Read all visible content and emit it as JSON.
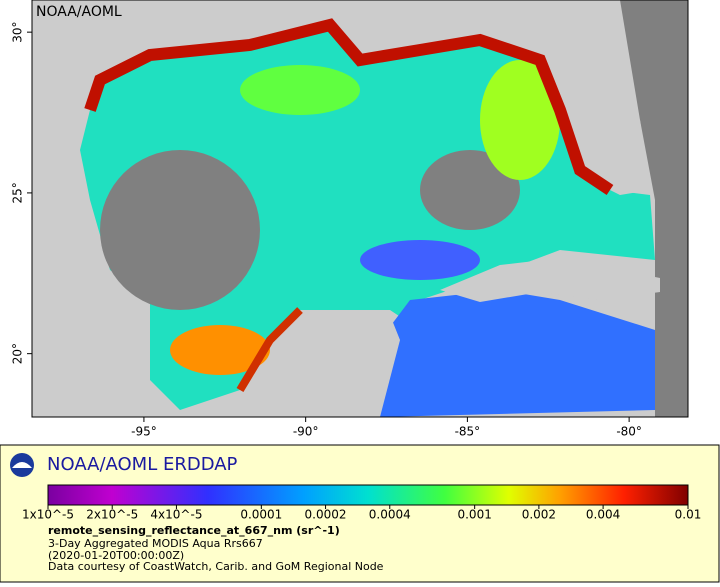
{
  "map": {
    "watermark": "NOAA/AOML",
    "lon_range": [
      -98.46,
      -78.18
    ],
    "lat_range": [
      18.03,
      31
    ],
    "lon_ticks": [
      {
        "value": -95,
        "label": "-95°"
      },
      {
        "value": -90,
        "label": "-90°"
      },
      {
        "value": -85,
        "label": "-85°"
      },
      {
        "value": -80,
        "label": "-80°"
      }
    ],
    "lat_ticks": [
      {
        "value": 30,
        "label": "30°"
      },
      {
        "value": 25,
        "label": "25°"
      },
      {
        "value": 20,
        "label": "20°"
      }
    ]
  },
  "legend": {
    "title": "NOAA/AOML ERDDAP",
    "scale": "log",
    "range": [
      1e-05,
      0.01
    ],
    "ticks": [
      {
        "value": 1e-05,
        "label": "1x10^-5"
      },
      {
        "value": 2e-05,
        "label": "2x10^-5"
      },
      {
        "value": 4e-05,
        "label": "4x10^-5"
      },
      0.0001,
      0.0002,
      0.0004,
      0.001,
      0.002,
      0.004,
      0.01
    ],
    "variable": "remote_sensing_reflectance_at_667_nm (sr^-1)",
    "lines": [
      "3-Day Aggregated MODIS Aqua Rrs667",
      "(2020-01-20T00:00:00Z)",
      "Data courtesy of CoastWatch, Carib. and GoM Regional Node"
    ]
  }
}
